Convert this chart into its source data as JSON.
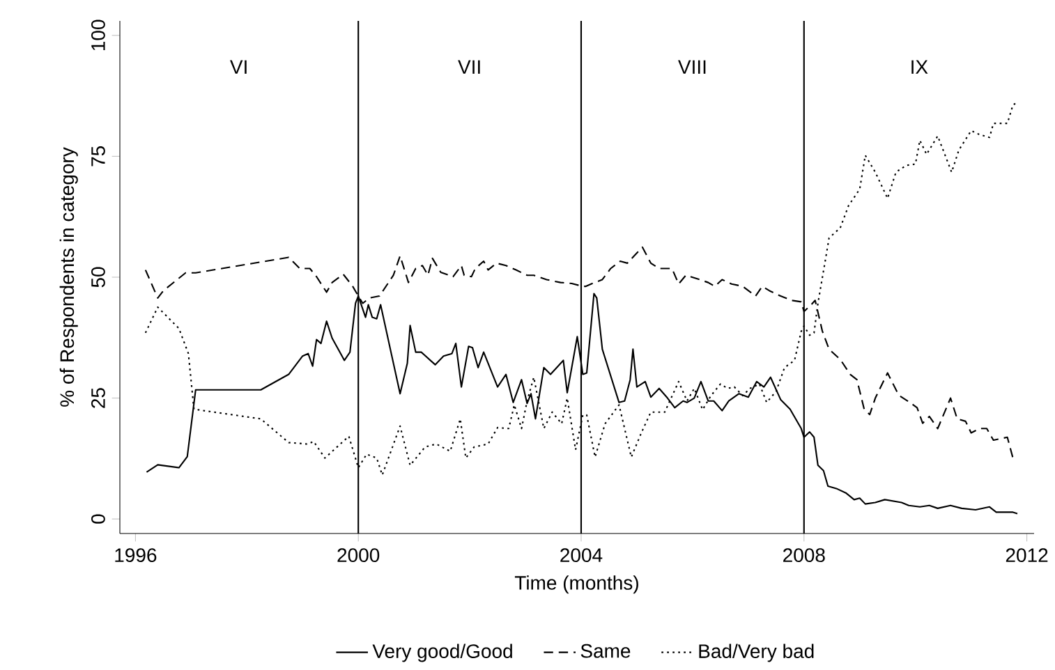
{
  "chart_data": {
    "type": "line",
    "xlabel": "Time (months)",
    "ylabel": "% of Respondents in category",
    "xlim": [
      1995.72,
      2012.13
    ],
    "ylim": [
      -3,
      103
    ],
    "xticks": [
      1996,
      2000,
      2004,
      2008,
      2012
    ],
    "yticks": [
      0,
      25,
      50,
      75,
      100
    ],
    "grid": false,
    "legend": "bottom",
    "marker": "none",
    "ref_lines": [
      {
        "axis": "x",
        "value": 2000,
        "color": "#000000"
      },
      {
        "axis": "x",
        "value": 2004,
        "color": "#000000"
      },
      {
        "axis": "x",
        "value": 2008,
        "color": "#000000"
      }
    ],
    "annotations": [
      "VI",
      "VII",
      "VIII",
      "IX"
    ],
    "series": [
      {
        "name": "Very good/Good",
        "color": "#000000",
        "line_style": "solid",
        "x": [
          1996.2,
          1996.4,
          1996.78,
          1996.93,
          1997.08,
          1998.25,
          1998.75,
          1999.0,
          1999.1,
          1999.18,
          1999.25,
          1999.33,
          1999.43,
          1999.53,
          1999.75,
          1999.85,
          1999.95,
          2000.0,
          2000.13,
          2000.18,
          2000.25,
          2000.33,
          2000.4,
          2000.75,
          2000.88,
          2000.93,
          2001.03,
          2001.13,
          2001.38,
          2001.53,
          2001.68,
          2001.75,
          2001.85,
          2001.98,
          2002.05,
          2002.15,
          2002.25,
          2002.5,
          2002.65,
          2002.78,
          2002.93,
          2003.03,
          2003.1,
          2003.18,
          2003.33,
          2003.45,
          2003.68,
          2003.75,
          2003.93,
          2004.03,
          2004.1,
          2004.23,
          2004.28,
          2004.38,
          2004.68,
          2004.78,
          2004.88,
          2004.93,
          2005.0,
          2005.15,
          2005.25,
          2005.4,
          2005.55,
          2005.68,
          2005.83,
          2005.9,
          2006.03,
          2006.15,
          2006.28,
          2006.38,
          2006.53,
          2006.65,
          2006.83,
          2007.0,
          2007.15,
          2007.28,
          2007.4,
          2007.58,
          2007.75,
          2007.95,
          2008.0,
          2008.1,
          2008.18,
          2008.25,
          2008.35,
          2008.43,
          2008.58,
          2008.75,
          2008.9,
          2009.0,
          2009.1,
          2009.28,
          2009.45,
          2009.75,
          2009.88,
          2010.08,
          2010.25,
          2010.4,
          2010.63,
          2010.83,
          2011.08,
          2011.33,
          2011.45,
          2011.75,
          2011.83
        ],
        "values": [
          9.7,
          11.2,
          10.6,
          12.9,
          26.7,
          26.7,
          29.9,
          33.7,
          34.2,
          31.6,
          37.1,
          36.3,
          40.9,
          37.4,
          32.8,
          34.5,
          44.6,
          46.1,
          41.7,
          44.3,
          41.7,
          41.4,
          44.3,
          25.9,
          32.2,
          40.0,
          34.5,
          34.5,
          31.9,
          33.7,
          34.2,
          36.3,
          27.3,
          35.7,
          35.4,
          31.3,
          34.5,
          27.3,
          29.9,
          24.1,
          28.8,
          23.9,
          25.9,
          20.7,
          31.3,
          29.9,
          32.8,
          26.1,
          37.7,
          29.9,
          30.2,
          46.6,
          45.7,
          35.1,
          24.1,
          24.4,
          28.8,
          35.1,
          27.3,
          28.4,
          25.2,
          27.0,
          25.0,
          23.0,
          24.4,
          24.1,
          25.0,
          28.4,
          24.4,
          24.4,
          22.4,
          24.4,
          25.9,
          25.2,
          28.4,
          27.3,
          29.3,
          24.7,
          22.7,
          18.7,
          16.9,
          18.0,
          16.9,
          11.1,
          10.0,
          6.8,
          6.3,
          5.4,
          4.0,
          4.3,
          3.1,
          3.4,
          4.0,
          3.4,
          2.8,
          2.5,
          2.8,
          2.2,
          2.8,
          2.2,
          1.9,
          2.5,
          1.4,
          1.4,
          1.1
        ]
      },
      {
        "name": "Same",
        "color": "#000000",
        "line_style": "dashed",
        "x": [
          1996.18,
          1996.4,
          1996.5,
          1996.9,
          1997.08,
          1998.75,
          1998.95,
          1999.13,
          1999.25,
          1999.43,
          1999.53,
          1999.73,
          1999.9,
          2000.0,
          2000.08,
          2000.2,
          2000.38,
          2000.63,
          2000.75,
          2000.9,
          2001.03,
          2001.15,
          2001.25,
          2001.33,
          2001.48,
          2001.7,
          2001.85,
          2001.9,
          2002.03,
          2002.1,
          2002.25,
          2002.33,
          2002.48,
          2002.65,
          2002.83,
          2003.03,
          2003.15,
          2003.38,
          2003.63,
          2003.83,
          2004.03,
          2004.08,
          2004.2,
          2004.38,
          2004.53,
          2004.7,
          2004.83,
          2004.95,
          2005.1,
          2005.25,
          2005.4,
          2005.63,
          2005.75,
          2005.88,
          2006.13,
          2006.28,
          2006.4,
          2006.53,
          2006.7,
          2006.9,
          2007.13,
          2007.25,
          2007.38,
          2007.58,
          2007.78,
          2007.95,
          2008.0,
          2008.13,
          2008.2,
          2008.33,
          2008.45,
          2008.65,
          2008.83,
          2008.95,
          2009.08,
          2009.18,
          2009.28,
          2009.5,
          2009.7,
          2009.9,
          2010.03,
          2010.13,
          2010.25,
          2010.4,
          2010.63,
          2010.75,
          2010.9,
          2011.0,
          2011.15,
          2011.28,
          2011.4,
          2011.65,
          2011.75
        ],
        "values": [
          51.5,
          45.7,
          47.2,
          50.9,
          50.9,
          54.1,
          51.8,
          51.8,
          50.1,
          46.9,
          48.9,
          50.6,
          48.1,
          46.1,
          44.6,
          45.7,
          46.1,
          50.4,
          54.4,
          48.9,
          51.8,
          52.4,
          50.4,
          53.9,
          51.0,
          50.1,
          52.4,
          50.4,
          50.1,
          51.8,
          53.3,
          51.5,
          52.9,
          52.4,
          51.5,
          50.4,
          50.4,
          49.5,
          48.9,
          48.7,
          48.1,
          48.1,
          48.7,
          49.5,
          51.8,
          53.3,
          52.9,
          54.4,
          56.2,
          52.9,
          51.8,
          51.8,
          48.6,
          50.4,
          49.5,
          48.9,
          48.1,
          49.5,
          48.6,
          48.1,
          46.1,
          48.1,
          47.2,
          46.1,
          45.2,
          44.9,
          42.9,
          44.3,
          45.2,
          38.8,
          35.1,
          33.0,
          29.9,
          28.8,
          22.7,
          21.6,
          25.0,
          30.2,
          25.6,
          24.1,
          23.0,
          19.8,
          21.2,
          18.7,
          25.0,
          20.7,
          20.2,
          17.8,
          18.7,
          18.7,
          16.3,
          16.9,
          12.6
        ]
      },
      {
        "name": "Bad/Very bad",
        "color": "#000000",
        "line_style": "dotted",
        "x": [
          1996.18,
          1996.4,
          1996.78,
          1996.95,
          1997.05,
          1998.25,
          1998.75,
          1999.08,
          1999.2,
          1999.4,
          1999.83,
          2000.0,
          2000.15,
          2000.33,
          2000.43,
          2000.75,
          2000.93,
          2001.2,
          2001.4,
          2001.65,
          2001.83,
          2001.93,
          2002.08,
          2002.33,
          2002.5,
          2002.7,
          2002.8,
          2002.93,
          2003.03,
          2003.15,
          2003.33,
          2003.48,
          2003.65,
          2003.75,
          2003.9,
          2004.03,
          2004.1,
          2004.25,
          2004.43,
          2004.68,
          2004.9,
          2005.08,
          2005.25,
          2005.5,
          2005.75,
          2005.9,
          2006.03,
          2006.18,
          2006.33,
          2006.5,
          2006.63,
          2006.75,
          2006.9,
          2007.03,
          2007.2,
          2007.33,
          2007.5,
          2007.65,
          2007.83,
          2007.95,
          2008.0,
          2008.1,
          2008.18,
          2008.25,
          2008.38,
          2008.45,
          2008.65,
          2008.8,
          2009.0,
          2009.1,
          2009.28,
          2009.5,
          2009.65,
          2009.83,
          2010.0,
          2010.08,
          2010.2,
          2010.4,
          2010.65,
          2010.78,
          2011.0,
          2011.15,
          2011.33,
          2011.4,
          2011.65,
          2011.75,
          2011.83
        ],
        "values": [
          38.5,
          43.8,
          39.4,
          34.2,
          22.7,
          20.7,
          15.8,
          15.5,
          16.0,
          12.6,
          17.1,
          10.6,
          13.4,
          12.6,
          9.1,
          19.2,
          11.1,
          14.9,
          15.5,
          14.0,
          20.7,
          12.6,
          14.9,
          15.5,
          18.9,
          18.7,
          23.6,
          18.7,
          24.4,
          29.3,
          18.7,
          22.1,
          19.7,
          25.0,
          14.3,
          21.5,
          21.5,
          12.8,
          19.7,
          23.6,
          12.8,
          17.8,
          22.1,
          22.1,
          28.4,
          24.4,
          27.0,
          22.6,
          25.5,
          27.9,
          27.0,
          27.3,
          25.5,
          27.0,
          27.9,
          24.1,
          26.4,
          31.3,
          32.8,
          38.8,
          39.9,
          38.0,
          38.5,
          44.6,
          53.3,
          58.1,
          60.2,
          64.8,
          68.2,
          75.2,
          71.7,
          66.3,
          71.7,
          73.1,
          73.4,
          78.3,
          75.4,
          79.2,
          71.7,
          76.3,
          80.3,
          79.5,
          78.9,
          81.8,
          81.8,
          85.6,
          86.2
        ]
      }
    ]
  }
}
